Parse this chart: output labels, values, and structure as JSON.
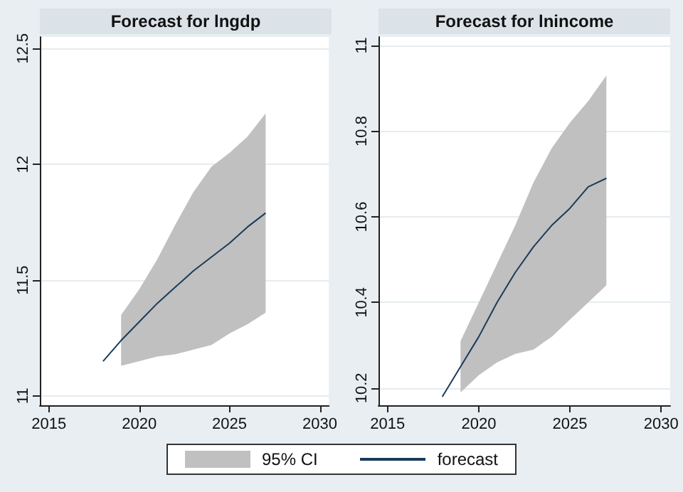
{
  "chart_data": [
    {
      "type": "line",
      "title": "Forecast for lngdp",
      "xlim": [
        2014.5,
        2030.5
      ],
      "xticks": [
        {
          "value": 2015,
          "label": "2015"
        },
        {
          "value": 2020,
          "label": "2020"
        },
        {
          "value": 2025,
          "label": "2025"
        },
        {
          "value": 2030,
          "label": "2030"
        }
      ],
      "ylim": [
        10.96,
        12.55
      ],
      "yticks": [
        11,
        11.5,
        12,
        12.5
      ],
      "grid": "y",
      "legend": "bottom",
      "annotations": [
        "95% CI"
      ],
      "series": [
        {
          "name": "forecast",
          "type": "line",
          "color": "#1a3b5a",
          "x": [
            2018,
            2019,
            2020,
            2021,
            2022,
            2023,
            2024,
            2025,
            2026,
            2027
          ],
          "values": [
            11.15,
            11.24,
            11.32,
            11.4,
            11.47,
            11.54,
            11.6,
            11.66,
            11.73,
            11.79
          ],
          "lower": [
            null,
            11.13,
            11.15,
            11.17,
            11.18,
            11.2,
            11.22,
            11.27,
            11.31,
            11.36
          ],
          "upper": [
            null,
            11.35,
            11.46,
            11.59,
            11.74,
            11.88,
            11.99,
            12.05,
            12.12,
            12.22
          ]
        }
      ]
    },
    {
      "type": "line",
      "title": "Forecast for lnincome",
      "xlim": [
        2014.5,
        2030.5
      ],
      "xticks": [
        {
          "value": 2015,
          "label": "2015"
        },
        {
          "value": 2020,
          "label": "2020"
        },
        {
          "value": 2025,
          "label": "2025"
        },
        {
          "value": 2030,
          "label": "2030"
        }
      ],
      "ylim": [
        10.16,
        11.02
      ],
      "yticks": [
        10.2,
        10.4,
        10.6,
        10.8,
        11
      ],
      "grid": "y",
      "series": [
        {
          "type": "line",
          "color": "#1a3b5a",
          "x": [
            2018,
            2019,
            2020,
            2021,
            2022,
            2023,
            2024,
            2025,
            2026,
            2027
          ],
          "values": [
            10.18,
            10.25,
            10.32,
            10.4,
            10.47,
            10.53,
            10.58,
            10.62,
            10.67,
            10.69
          ],
          "lower": [
            null,
            10.19,
            10.23,
            10.26,
            10.28,
            10.29,
            10.32,
            10.36,
            10.4,
            10.44
          ],
          "upper": [
            null,
            10.31,
            10.4,
            10.49,
            10.58,
            10.68,
            10.76,
            10.82,
            10.87,
            10.93
          ]
        }
      ]
    }
  ]
}
